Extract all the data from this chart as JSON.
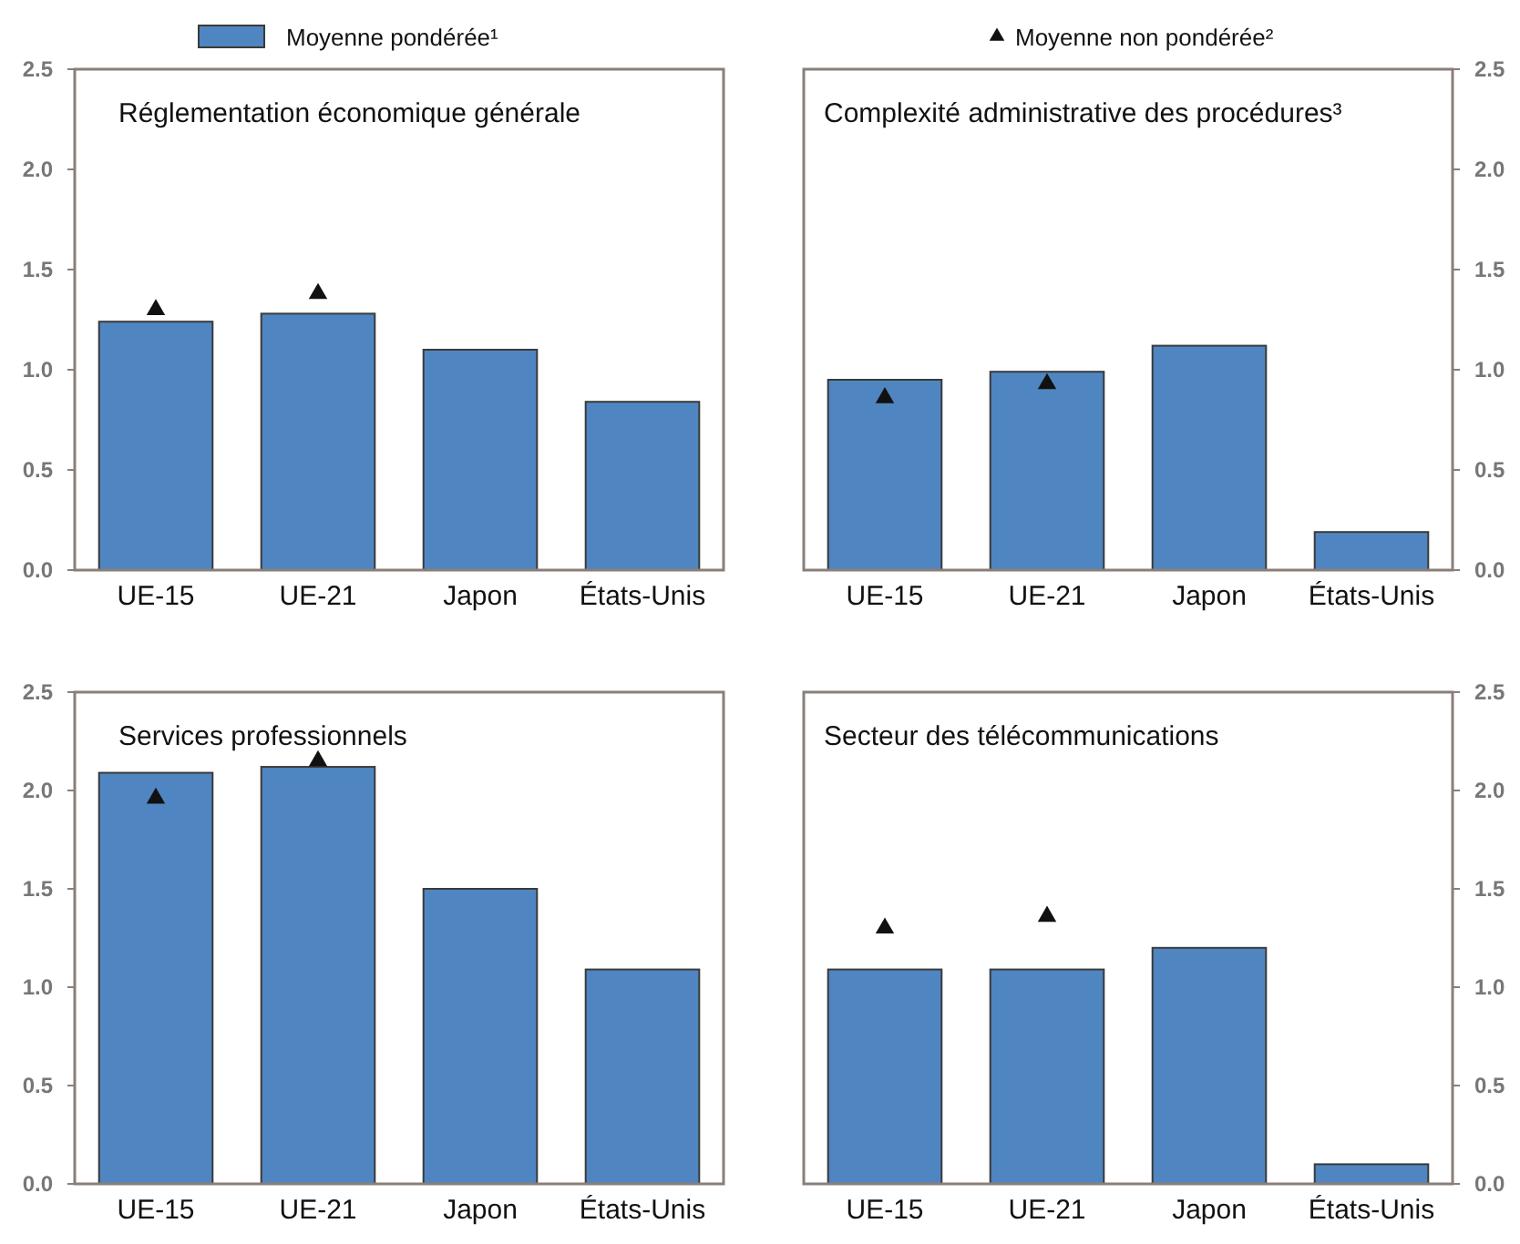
{
  "chart_data": [
    {
      "type": "bar",
      "title": "Réglementation économique générale",
      "categories": [
        "UE-15",
        "UE-21",
        "Japon",
        "États-Unis"
      ],
      "ylim": [
        0,
        2.5
      ],
      "yticks": [
        {
          "value": 0,
          "label": "0.0"
        },
        0.5,
        {
          "value": 1,
          "label": "1.0"
        },
        1.5,
        {
          "value": 2,
          "label": "2.0"
        },
        2.5
      ],
      "grid": false,
      "legend": "top",
      "marker": "triangle",
      "series": [
        {
          "name": "Moyenne pondérée¹",
          "color": "#4f86c1",
          "values": [
            1.24,
            1.28,
            1.1,
            0.84
          ]
        },
        {
          "type": "scatter",
          "color": "#111111",
          "x": [
            "UE-15",
            "UE-21"
          ],
          "values": [
            1.3,
            1.38
          ]
        }
      ]
    },
    {
      "type": "bar",
      "title": "Complexité administrative des procédures³",
      "categories": [
        "UE-15",
        "UE-21",
        "Japon",
        "États-Unis"
      ],
      "ylim": [
        0,
        2.5
      ],
      "yticks": [
        {
          "value": 0,
          "label": "0.0"
        },
        0.5,
        {
          "value": 1,
          "label": "1.0"
        },
        1.5,
        {
          "value": 2,
          "label": "2.0"
        },
        2.5
      ],
      "grid": false,
      "legend": "top",
      "marker": "triangle",
      "series": [
        {
          "color": "#4f86c1",
          "values": [
            0.95,
            0.99,
            1.12,
            0.19
          ]
        },
        {
          "name": "Moyenne non pondérée²",
          "type": "scatter",
          "color": "#111111",
          "x": [
            "UE-15",
            "UE-21"
          ],
          "values": [
            0.86,
            0.93
          ]
        }
      ]
    },
    {
      "type": "bar",
      "title": "Services professionnels",
      "categories": [
        "UE-15",
        "UE-21",
        "Japon",
        "États-Unis"
      ],
      "ylim": [
        0,
        2.5
      ],
      "yticks": [
        {
          "value": 0,
          "label": "0.0"
        },
        0.5,
        {
          "value": 1,
          "label": "1.0"
        },
        1.5,
        {
          "value": 2,
          "label": "2.0"
        },
        2.5
      ],
      "grid": false,
      "marker": "triangle",
      "series": [
        {
          "color": "#4f86c1",
          "values": [
            2.09,
            2.12,
            1.5,
            1.09
          ]
        },
        {
          "type": "scatter",
          "color": "#111111",
          "x": [
            "UE-15",
            "UE-21"
          ],
          "values": [
            1.96,
            2.15
          ]
        }
      ]
    },
    {
      "type": "bar",
      "title": "Secteur des télécommunications",
      "categories": [
        "UE-15",
        "UE-21",
        "Japon",
        "États-Unis"
      ],
      "ylim": [
        0,
        2.5
      ],
      "yticks": [
        {
          "value": 0,
          "label": "0.0"
        },
        0.5,
        {
          "value": 1,
          "label": "1.0"
        },
        1.5,
        {
          "value": 2,
          "label": "2.0"
        },
        2.5
      ],
      "grid": false,
      "marker": "triangle",
      "series": [
        {
          "color": "#4f86c1",
          "values": [
            1.09,
            1.09,
            1.2,
            0.1
          ]
        },
        {
          "type": "scatter",
          "color": "#111111",
          "x": [
            "UE-15",
            "UE-21"
          ],
          "values": [
            1.3,
            1.36
          ]
        }
      ]
    }
  ]
}
